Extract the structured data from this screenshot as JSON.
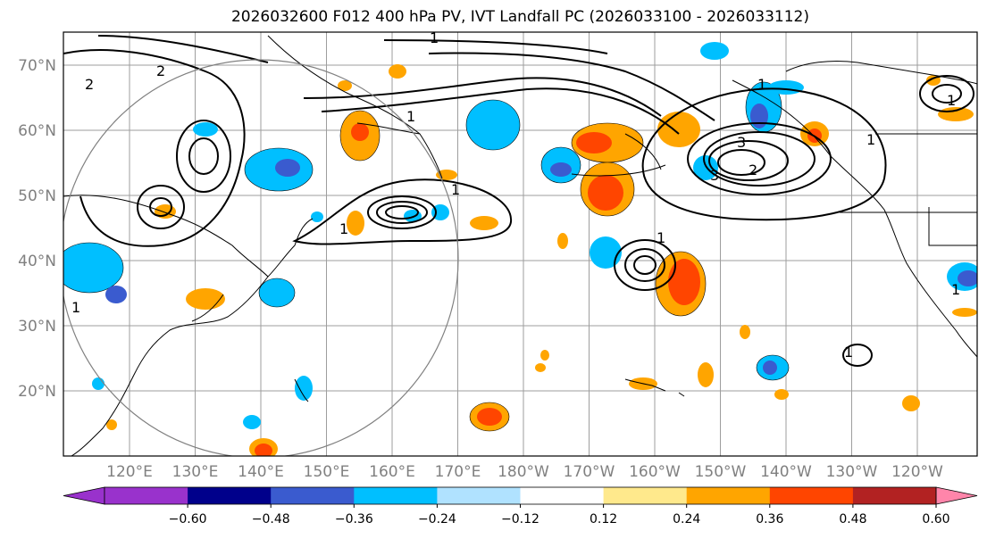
{
  "title": "2026032600 F012 400 hPa PV, IVT Landfall PC (2026033100 - 2026033112)",
  "map": {
    "lon_labels": [
      "120°E",
      "130°E",
      "140°E",
      "150°E",
      "160°E",
      "170°E",
      "180°W",
      "170°W",
      "160°W",
      "150°W",
      "140°W",
      "130°W",
      "120°W"
    ],
    "lat_labels": [
      "70°N",
      "60°N",
      "50°N",
      "40°N",
      "30°N",
      "20°N"
    ],
    "grid": true,
    "contour_label_values": [
      "1",
      "2",
      "3"
    ]
  },
  "colorbar": {
    "ticks": [
      "−0.60",
      "−0.48",
      "−0.36",
      "−0.24",
      "−0.12",
      "0.12",
      "0.24",
      "0.36",
      "0.48",
      "0.60"
    ],
    "colors": [
      "#9932cc",
      "#00008b",
      "#3a5bcf",
      "#00bfff",
      "#b0e2ff",
      "#ffffff",
      "#ffe98c",
      "#ffa500",
      "#ff4500",
      "#b22222",
      "#ff85aa"
    ],
    "extend": "both"
  }
}
